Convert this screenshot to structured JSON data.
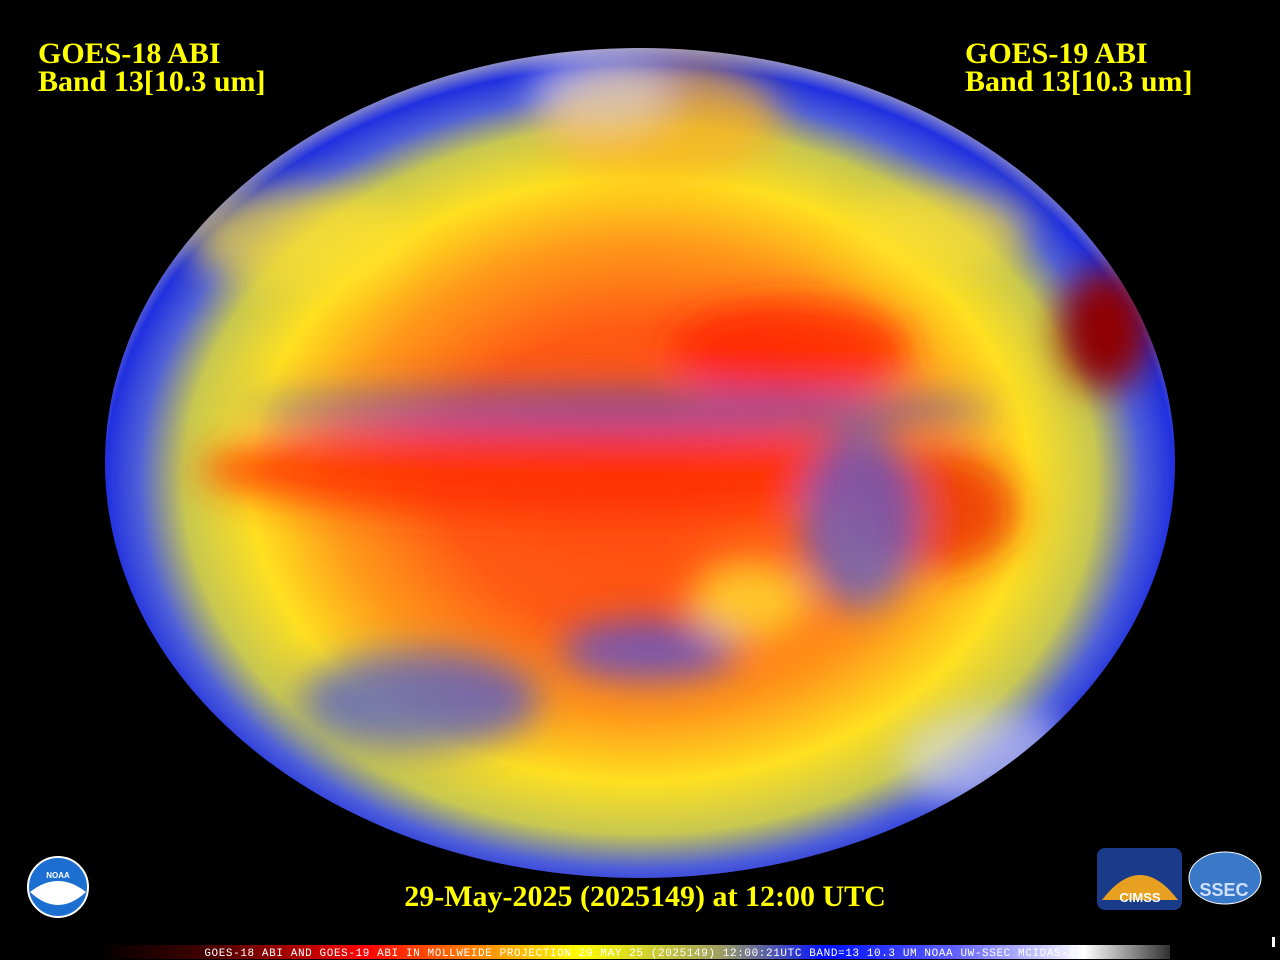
{
  "header": {
    "left": {
      "line1": "GOES-18 ABI",
      "line2": "Band 13[10.3 um]"
    },
    "right": {
      "line1": "GOES-19 ABI",
      "line2": "Band 13[10.3 um]"
    }
  },
  "timestamp": "29-May-2025 (2025149) at 12:00 UTC",
  "caption": "GOES-18 ABI AND GOES-19 ABI IN MOLLWEIDE PROJECTION 29 MAY 25 (2025149) 12:00:21UTC BAND=13 10.3 UM NOAA UW-SSEC MCIDAS-X",
  "logos": {
    "noaa": "NOAA",
    "cimss": "CIMSS",
    "ssec": "SSEC"
  }
}
